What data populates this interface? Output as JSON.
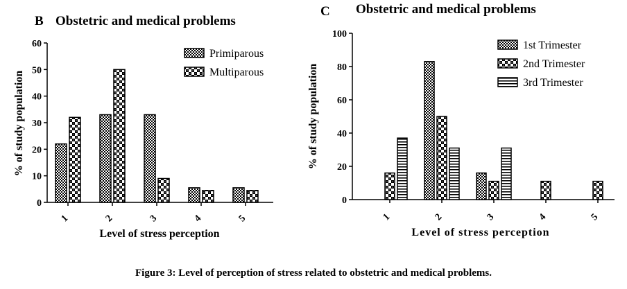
{
  "figure_caption": "Figure 3: Level of perception of stress related to obstetric and medical problems.",
  "chart_data": [
    {
      "type": "bar",
      "panel_label": "B",
      "title": "Obstetric and medical problems",
      "xlabel": "Level of stress perception",
      "ylabel": "% of study population",
      "categories": [
        "1",
        "2",
        "3",
        "4",
        "5"
      ],
      "ylim": [
        0,
        60
      ],
      "yticks": [
        0,
        10,
        20,
        30,
        40,
        50,
        60
      ],
      "legend_position": "top-right",
      "series": [
        {
          "name": "Primiparous",
          "values": [
            22,
            33,
            33,
            5.5,
            5.5
          ],
          "pattern": "fine-check"
        },
        {
          "name": "Multiparous",
          "values": [
            32,
            50,
            9,
            4.5,
            4.5
          ],
          "pattern": "coarse-check"
        }
      ]
    },
    {
      "type": "bar",
      "panel_label": "C",
      "title": "Obstetric and medical problems",
      "xlabel": "Level of stress perception",
      "ylabel": "% of study population",
      "categories": [
        "1",
        "2",
        "3",
        "4",
        "5"
      ],
      "ylim": [
        0,
        100
      ],
      "yticks": [
        0,
        20,
        40,
        60,
        80,
        100
      ],
      "legend_position": "top-right",
      "series": [
        {
          "name": "1st Trimester",
          "values": [
            0,
            83,
            16,
            0,
            0
          ],
          "pattern": "fine-check"
        },
        {
          "name": "2nd Trimester",
          "values": [
            16,
            50,
            11,
            11,
            11
          ],
          "pattern": "coarse-check"
        },
        {
          "name": "3rd Trimester",
          "values": [
            37,
            31,
            31,
            0,
            0
          ],
          "pattern": "horizontal-lines"
        }
      ]
    }
  ]
}
